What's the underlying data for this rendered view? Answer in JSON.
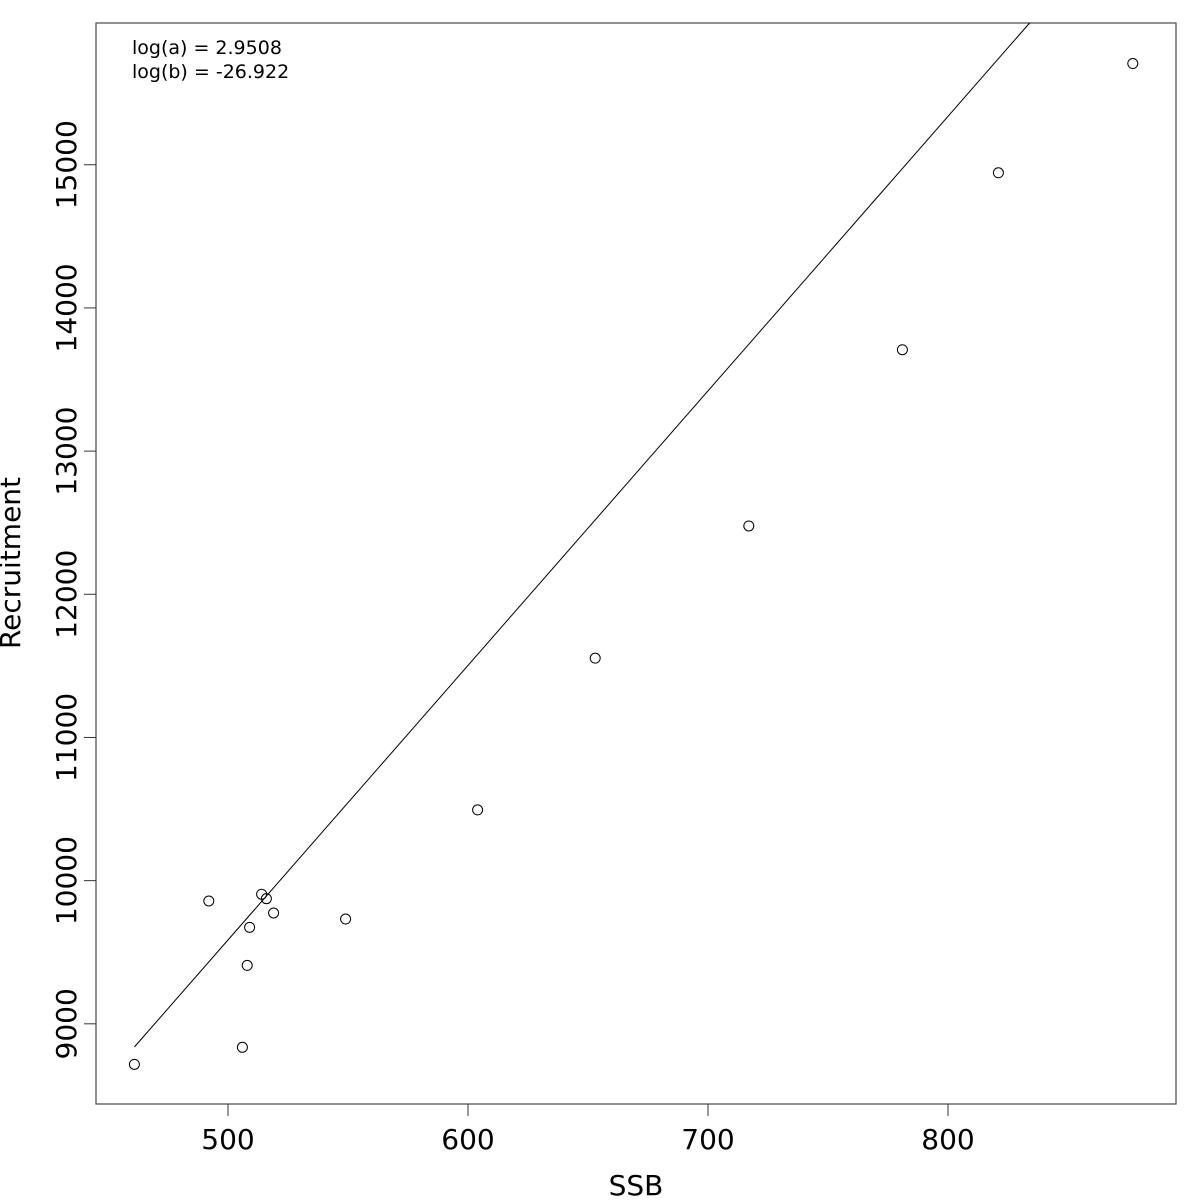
{
  "chart_data": {
    "type": "scatter",
    "title": "",
    "xlabel": "SSB",
    "ylabel": "Recruitment",
    "xlim": [
      445,
      895
    ],
    "ylim": [
      8440,
      15990
    ],
    "x_ticks": [
      500,
      600,
      700,
      800
    ],
    "y_ticks": [
      9000,
      10000,
      11000,
      12000,
      13000,
      14000,
      15000
    ],
    "x_tick_labels": [
      "500",
      "600",
      "700",
      "800"
    ],
    "y_tick_labels": [
      "9000",
      "10000",
      "11000",
      "12000",
      "13000",
      "14000",
      "15000"
    ],
    "grid": false,
    "annotations": [
      "log(a) = 2.9508",
      "log(b) = -26.922"
    ],
    "series": [
      {
        "type": "scatter",
        "marker": "open-circle",
        "points": [
          {
            "x": 461,
            "y": 8717
          },
          {
            "x": 492,
            "y": 9858
          },
          {
            "x": 506,
            "y": 8836
          },
          {
            "x": 508,
            "y": 9408
          },
          {
            "x": 509,
            "y": 9674
          },
          {
            "x": 514,
            "y": 9905
          },
          {
            "x": 516,
            "y": 9874
          },
          {
            "x": 519,
            "y": 9774
          },
          {
            "x": 549,
            "y": 9732
          },
          {
            "x": 604,
            "y": 10494
          },
          {
            "x": 653,
            "y": 11554
          },
          {
            "x": 717,
            "y": 12477
          },
          {
            "x": 781,
            "y": 13708
          },
          {
            "x": 821,
            "y": 14944
          },
          {
            "x": 877,
            "y": 15707
          }
        ]
      },
      {
        "type": "line",
        "points": [
          {
            "x": 461,
            "y": 8838
          },
          {
            "x": 834,
            "y": 15990
          }
        ]
      }
    ]
  }
}
